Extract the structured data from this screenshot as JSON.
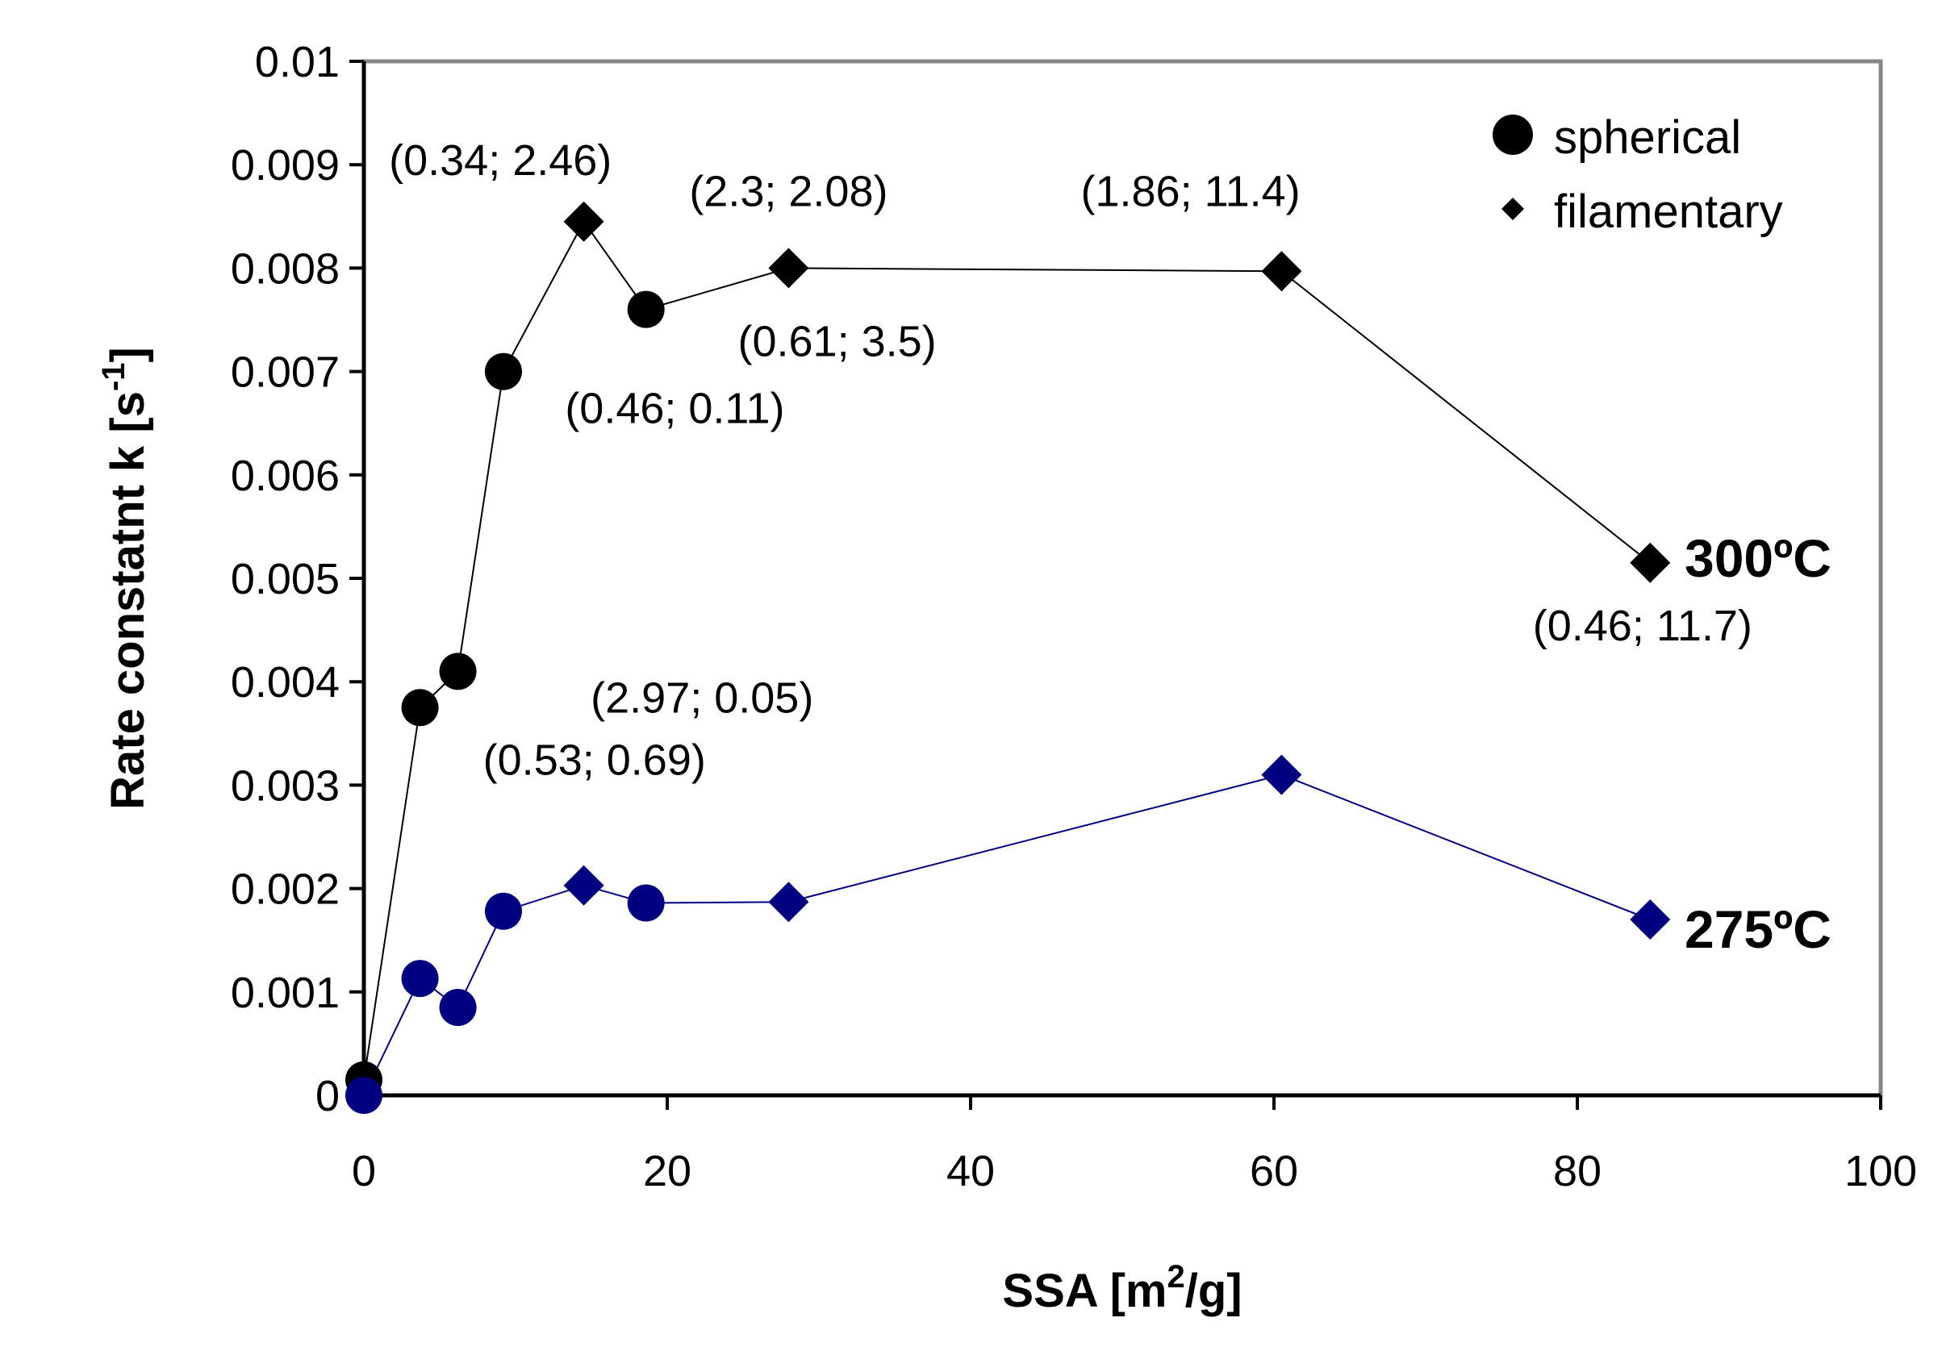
{
  "chart_data": {
    "type": "scatter",
    "xlabel": "SSA [m",
    "xlabel_sup": "2",
    "xlabel_tail": "/g]",
    "ylabel": "Rate constatnt k [s",
    "ylabel_sup": "-1",
    "ylabel_tail": "]",
    "xlim": [
      0,
      100
    ],
    "ylim": [
      0,
      0.01
    ],
    "xticks": [
      "0",
      "20",
      "40",
      "60",
      "80",
      "100"
    ],
    "xtick_values": [
      0,
      20,
      40,
      60,
      80,
      100
    ],
    "yticks": [
      "0",
      "0.001",
      "0.002",
      "0.003",
      "0.004",
      "0.005",
      "0.006",
      "0.007",
      "0.008",
      "0.009",
      "0.01"
    ],
    "ytick_values": [
      0,
      0.001,
      0.002,
      0.003,
      0.004,
      0.005,
      0.006,
      0.007,
      0.008,
      0.009,
      0.01
    ],
    "grid": false,
    "legend": {
      "position": "top-right",
      "entries": [
        {
          "label": "spherical",
          "marker": "circle"
        },
        {
          "label": "filamentary",
          "marker": "diamond"
        }
      ]
    },
    "series": [
      {
        "name": "300ºC",
        "color": "#000000",
        "points": [
          {
            "x": 0,
            "y": 0.00015,
            "marker": "circle"
          },
          {
            "x": 3.7,
            "y": 0.00375,
            "marker": "circle"
          },
          {
            "x": 6.2,
            "y": 0.0041,
            "marker": "circle"
          },
          {
            "x": 9.2,
            "y": 0.007,
            "marker": "circle"
          },
          {
            "x": 14.5,
            "y": 0.00845,
            "marker": "diamond"
          },
          {
            "x": 18.6,
            "y": 0.0076,
            "marker": "circle"
          },
          {
            "x": 28,
            "y": 0.008,
            "marker": "diamond"
          },
          {
            "x": 60.5,
            "y": 0.00797,
            "marker": "diamond"
          },
          {
            "x": 84.8,
            "y": 0.00515,
            "marker": "diamond"
          }
        ]
      },
      {
        "name": "275ºC",
        "color": "#000080",
        "points": [
          {
            "x": 0,
            "y": 0.0,
            "marker": "circle"
          },
          {
            "x": 3.7,
            "y": 0.00113,
            "marker": "circle"
          },
          {
            "x": 6.2,
            "y": 0.00085,
            "marker": "circle"
          },
          {
            "x": 9.2,
            "y": 0.00178,
            "marker": "circle"
          },
          {
            "x": 14.5,
            "y": 0.00203,
            "marker": "diamond"
          },
          {
            "x": 18.6,
            "y": 0.00186,
            "marker": "circle"
          },
          {
            "x": 28,
            "y": 0.00187,
            "marker": "diamond"
          },
          {
            "x": 60.5,
            "y": 0.0031,
            "marker": "diamond"
          },
          {
            "x": 84.8,
            "y": 0.0017,
            "marker": "diamond"
          }
        ]
      }
    ],
    "annotations": [
      {
        "text": "(0.34; 2.46)",
        "x": 9.0,
        "y": 0.0089
      },
      {
        "text": "(2.3; 2.08)",
        "x": 28,
        "y": 0.0086
      },
      {
        "text": "(1.86; 11.4)",
        "x": 54.5,
        "y": 0.0086
      },
      {
        "text": "(0.61; 3.5)",
        "x": 31.2,
        "y": 0.00715
      },
      {
        "text": "(0.46; 0.11)",
        "x": 20.5,
        "y": 0.0065
      },
      {
        "text": "(0.46; 11.7)",
        "x": 84.3,
        "y": 0.0044
      },
      {
        "text": "(2.97; 0.05)",
        "x": 22.3,
        "y": 0.0037
      },
      {
        "text": "(0.53; 0.69)",
        "x": 15.2,
        "y": 0.0031
      }
    ],
    "series_labels": [
      "300ºC",
      "275ºC"
    ]
  }
}
